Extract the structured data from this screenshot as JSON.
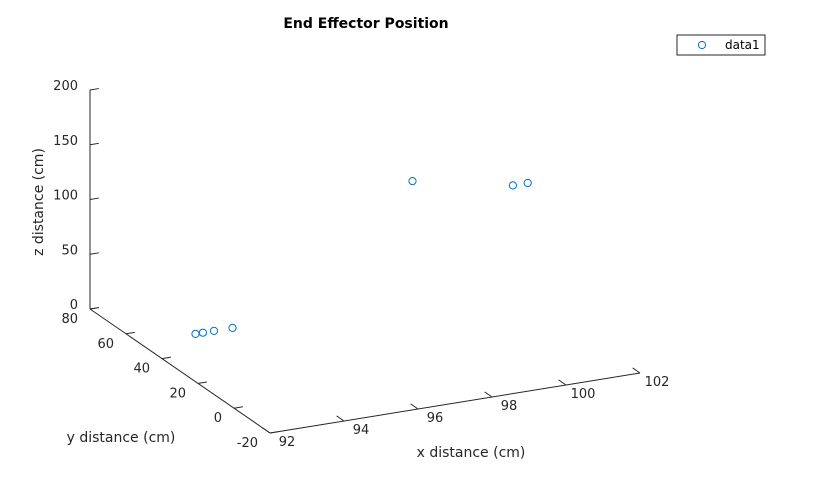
{
  "chart_data": {
    "type": "scatter",
    "projection": "3d",
    "title": "End Effector Position",
    "xlabel": "x distance (cm)",
    "ylabel": "y distance (cm)",
    "zlabel": "z distance (cm)",
    "xlim": [
      92,
      102
    ],
    "ylim": [
      -20,
      80
    ],
    "zlim": [
      0,
      200
    ],
    "xticks": [
      "92",
      "94",
      "96",
      "98",
      "100",
      "102"
    ],
    "yticks": [
      "-20",
      "0",
      "20",
      "40",
      "60",
      "80"
    ],
    "zticks": [
      "0",
      "50",
      "100",
      "150",
      "200"
    ],
    "legend": {
      "location": "top-right",
      "entries": [
        "data1"
      ]
    },
    "grid": false,
    "marker": "circle",
    "marker_color": "#0072BD",
    "series": [
      {
        "name": "data1",
        "points": [
          {
            "x": 93.1,
            "y": 44,
            "z": 12
          },
          {
            "x": 93.3,
            "y": 44,
            "z": 12
          },
          {
            "x": 93.6,
            "y": 44,
            "z": 12
          },
          {
            "x": 94.1,
            "y": 44,
            "z": 12
          },
          {
            "x": 99.5,
            "y": 55,
            "z": 104
          },
          {
            "x": 100.9,
            "y": 28,
            "z": 123
          },
          {
            "x": 101.3,
            "y": 28,
            "z": 123
          }
        ]
      }
    ]
  }
}
